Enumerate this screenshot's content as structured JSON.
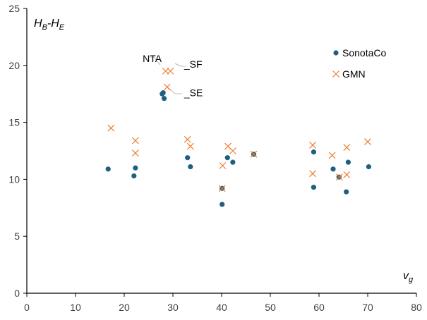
{
  "chart_data": {
    "type": "scatter",
    "xlabel": "v",
    "xlabel_sub": "g",
    "ylabel_parts": [
      "H",
      "B",
      "-H",
      "E"
    ],
    "xlim": [
      0,
      80
    ],
    "ylim": [
      0,
      25
    ],
    "x_ticks": [
      0,
      10,
      20,
      30,
      40,
      50,
      60,
      70,
      80
    ],
    "y_ticks": [
      0,
      5,
      10,
      15,
      20,
      25
    ],
    "grid": false,
    "legend_position": "top-right",
    "series": [
      {
        "name": "SonotaCo",
        "marker": "circle",
        "color": "#1f5f7f",
        "points": [
          [
            16.7,
            10.9
          ],
          [
            22.0,
            10.3
          ],
          [
            22.3,
            11.0
          ],
          [
            27.8,
            17.5
          ],
          [
            28.0,
            17.6
          ],
          [
            28.2,
            17.1
          ],
          [
            33.0,
            11.9
          ],
          [
            33.6,
            11.1
          ],
          [
            40.1,
            9.2
          ],
          [
            40.1,
            7.8
          ],
          [
            41.2,
            11.9
          ],
          [
            42.3,
            11.5
          ],
          [
            46.6,
            12.2
          ],
          [
            58.9,
            12.4
          ],
          [
            58.9,
            9.3
          ],
          [
            62.9,
            10.9
          ],
          [
            64.1,
            10.2
          ],
          [
            65.6,
            8.9
          ],
          [
            66.0,
            11.5
          ],
          [
            70.2,
            11.1
          ]
        ]
      },
      {
        "name": "GMN",
        "marker": "x",
        "color": "#ed7d31",
        "points": [
          [
            17.3,
            14.5
          ],
          [
            22.3,
            13.4
          ],
          [
            22.3,
            12.3
          ],
          [
            28.5,
            19.5
          ],
          [
            29.5,
            19.5
          ],
          [
            28.8,
            18.1
          ],
          [
            33.0,
            13.5
          ],
          [
            33.6,
            12.9
          ],
          [
            40.1,
            9.2
          ],
          [
            40.2,
            11.2
          ],
          [
            41.3,
            12.9
          ],
          [
            42.3,
            12.5
          ],
          [
            46.6,
            12.2
          ],
          [
            58.7,
            13.0
          ],
          [
            58.7,
            10.5
          ],
          [
            62.7,
            12.1
          ],
          [
            64.2,
            10.2
          ],
          [
            65.7,
            12.8
          ],
          [
            65.7,
            10.4
          ],
          [
            70.0,
            13.3
          ]
        ]
      }
    ],
    "annotations": [
      {
        "text": "NTA",
        "x": 27.7,
        "y": 20.3
      },
      {
        "text": "_SF",
        "x": 32.3,
        "y": 19.8
      },
      {
        "text": "_SE",
        "x": 32.3,
        "y": 17.3
      }
    ]
  }
}
